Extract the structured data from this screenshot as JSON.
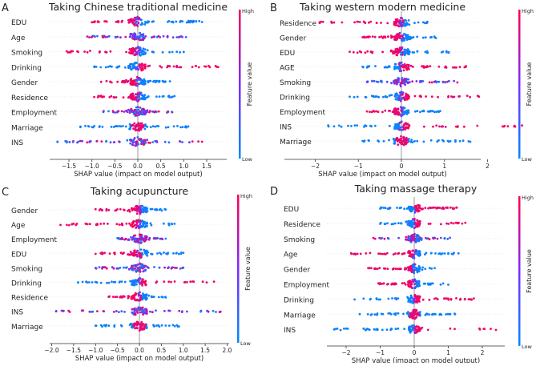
{
  "chart_data": [
    {
      "type": "scatter",
      "letter": "A",
      "title": "Taking Chinese traditional medicine",
      "xlabel": "SHAP value (impact on model output)",
      "xticks": [
        -1.5,
        -1.0,
        -0.5,
        0.0,
        0.5,
        1.0,
        1.5
      ],
      "xtick_labels": [
        "−1.5",
        "−1.0",
        "−0.5",
        "0.0",
        "0.5",
        "1.0",
        "1.5"
      ],
      "xlim": [
        -1.95,
        1.95
      ],
      "colorbar": {
        "title": "Feature value",
        "high": "High",
        "low": "Low"
      },
      "features": [
        {
          "name": "EDU",
          "range": [
            -1.0,
            1.4
          ],
          "high_side": "left"
        },
        {
          "name": "Age",
          "range": [
            -1.1,
            1.05
          ],
          "high_side": "mixed"
        },
        {
          "name": "Smoking",
          "range": [
            -1.55,
            1.0
          ],
          "high_side": "left"
        },
        {
          "name": "Drinking",
          "range": [
            -0.95,
            1.75
          ],
          "high_side": "right"
        },
        {
          "name": "Gender",
          "range": [
            -0.8,
            0.7
          ],
          "high_side": "left"
        },
        {
          "name": "Residence",
          "range": [
            -0.95,
            0.8
          ],
          "high_side": "left"
        },
        {
          "name": "Employment",
          "range": [
            -0.75,
            0.75
          ],
          "high_side": "mixed"
        },
        {
          "name": "Marriage",
          "range": [
            -1.25,
            1.1
          ],
          "high_side": "center"
        },
        {
          "name": "INS",
          "range": [
            -1.75,
            1.4
          ],
          "high_side": "mixed"
        }
      ]
    },
    {
      "type": "scatter",
      "letter": "B",
      "title": "Taking western modern medicine",
      "xlabel": "SHAP value (impact on model output)",
      "xticks": [
        -2,
        -1,
        0,
        1,
        2
      ],
      "xtick_labels": [
        "−2",
        "−1",
        "0",
        "1",
        "2"
      ],
      "xlim": [
        -2.4,
        2.9
      ],
      "colorbar": {
        "title": "Feature value",
        "high": "High",
        "low": "Low"
      },
      "features": [
        {
          "name": "Residence",
          "range": [
            -1.9,
            0.6
          ],
          "high_side": "left"
        },
        {
          "name": "Gender",
          "range": [
            -0.9,
            0.8
          ],
          "high_side": "left"
        },
        {
          "name": "EDU",
          "range": [
            -1.2,
            1.1
          ],
          "high_side": "left"
        },
        {
          "name": "AGE",
          "range": [
            -0.9,
            1.5
          ],
          "high_side": "right"
        },
        {
          "name": "Smoking",
          "range": [
            -0.8,
            1.3
          ],
          "high_side": "mixed"
        },
        {
          "name": "Drinking",
          "range": [
            -1.2,
            1.8
          ],
          "high_side": "right"
        },
        {
          "name": "Employment",
          "range": [
            -0.8,
            0.9
          ],
          "high_side": "left"
        },
        {
          "name": "INS",
          "range": [
            -1.7,
            2.8
          ],
          "high_side": "right"
        },
        {
          "name": "Marriage",
          "range": [
            -0.9,
            1.6
          ],
          "high_side": "center"
        }
      ]
    },
    {
      "type": "scatter",
      "letter": "C",
      "title": "Taking acupuncture",
      "xlabel": "SHAP value (impact on model output)",
      "xticks": [
        -2.0,
        -1.5,
        -1.0,
        -0.5,
        0.0,
        0.5,
        1.0,
        1.5,
        2.0
      ],
      "xtick_labels": [
        "−2.0",
        "−1.5",
        "−1.0",
        "−0.5",
        "0.0",
        "0.5",
        "1.0",
        "1.5",
        "2.0"
      ],
      "xlim": [
        -2.05,
        2.05
      ],
      "colorbar": {
        "title": "Feature value",
        "high": "High",
        "low": "Low"
      },
      "features": [
        {
          "name": "Gender",
          "range": [
            -1.0,
            0.6
          ],
          "high_side": "left"
        },
        {
          "name": "Age",
          "range": [
            -1.8,
            0.8
          ],
          "high_side": "left"
        },
        {
          "name": "Employment",
          "range": [
            -0.5,
            0.6
          ],
          "high_side": "mixed"
        },
        {
          "name": "EDU",
          "range": [
            -1.0,
            1.0
          ],
          "high_side": "left"
        },
        {
          "name": "Smoking",
          "range": [
            -1.0,
            1.0
          ],
          "high_side": "mixed"
        },
        {
          "name": "Drinking",
          "range": [
            -1.4,
            1.7
          ],
          "high_side": "right"
        },
        {
          "name": "Residence",
          "range": [
            -0.7,
            0.6
          ],
          "high_side": "left"
        },
        {
          "name": "INS",
          "range": [
            -1.9,
            1.85
          ],
          "high_side": "mixed"
        },
        {
          "name": "Marriage",
          "range": [
            -1.0,
            0.9
          ],
          "high_side": "center"
        }
      ]
    },
    {
      "type": "scatter",
      "letter": "D",
      "title": "Taking massage therapy",
      "xlabel": "SHAP value (impact on model output)",
      "xticks": [
        -2,
        -1,
        0,
        1,
        2
      ],
      "xtick_labels": [
        "−2",
        "−1",
        "0",
        "1",
        "2"
      ],
      "xlim": [
        -2.5,
        2.65
      ],
      "colorbar": {
        "title": "Feature value",
        "high": "High",
        "low": "Low"
      },
      "features": [
        {
          "name": "EDU",
          "range": [
            -1.0,
            1.25
          ],
          "high_side": "right"
        },
        {
          "name": "Residence",
          "range": [
            -1.0,
            1.5
          ],
          "high_side": "right"
        },
        {
          "name": "Smoking",
          "range": [
            -1.2,
            1.05
          ],
          "high_side": "mixed"
        },
        {
          "name": "Age",
          "range": [
            -1.85,
            1.3
          ],
          "high_side": "left"
        },
        {
          "name": "Gender",
          "range": [
            -1.35,
            0.6
          ],
          "high_side": "left"
        },
        {
          "name": "Employment",
          "range": [
            -1.05,
            1.0
          ],
          "high_side": "left"
        },
        {
          "name": "Drinking",
          "range": [
            -1.75,
            1.75
          ],
          "high_side": "right"
        },
        {
          "name": "Marriage",
          "range": [
            -1.6,
            1.2
          ],
          "high_side": "center"
        },
        {
          "name": "INS",
          "range": [
            -2.35,
            2.4
          ],
          "high_side": "right"
        }
      ]
    }
  ],
  "colors": {
    "high": "#ff0052",
    "low": "#008bfb",
    "mid": "#7b2bff",
    "zero_line": "#999999"
  }
}
